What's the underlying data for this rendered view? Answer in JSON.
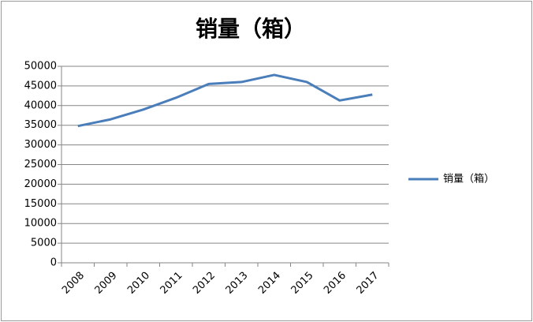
{
  "chart_data": {
    "type": "line",
    "title": "销量（箱）",
    "categories": [
      "2008",
      "2009",
      "2010",
      "2011",
      "2012",
      "2013",
      "2014",
      "2015",
      "2016",
      "2017"
    ],
    "series": [
      {
        "name": "销量（箱）",
        "color": "#4a7ebb",
        "values": [
          34800,
          36500,
          39000,
          42000,
          45500,
          46000,
          47800,
          46000,
          41300,
          42800
        ]
      }
    ],
    "ylim": [
      0,
      50000
    ],
    "yticks": [
      0,
      5000,
      10000,
      15000,
      20000,
      25000,
      30000,
      35000,
      40000,
      45000,
      50000
    ],
    "grid": true,
    "legend": "right"
  }
}
